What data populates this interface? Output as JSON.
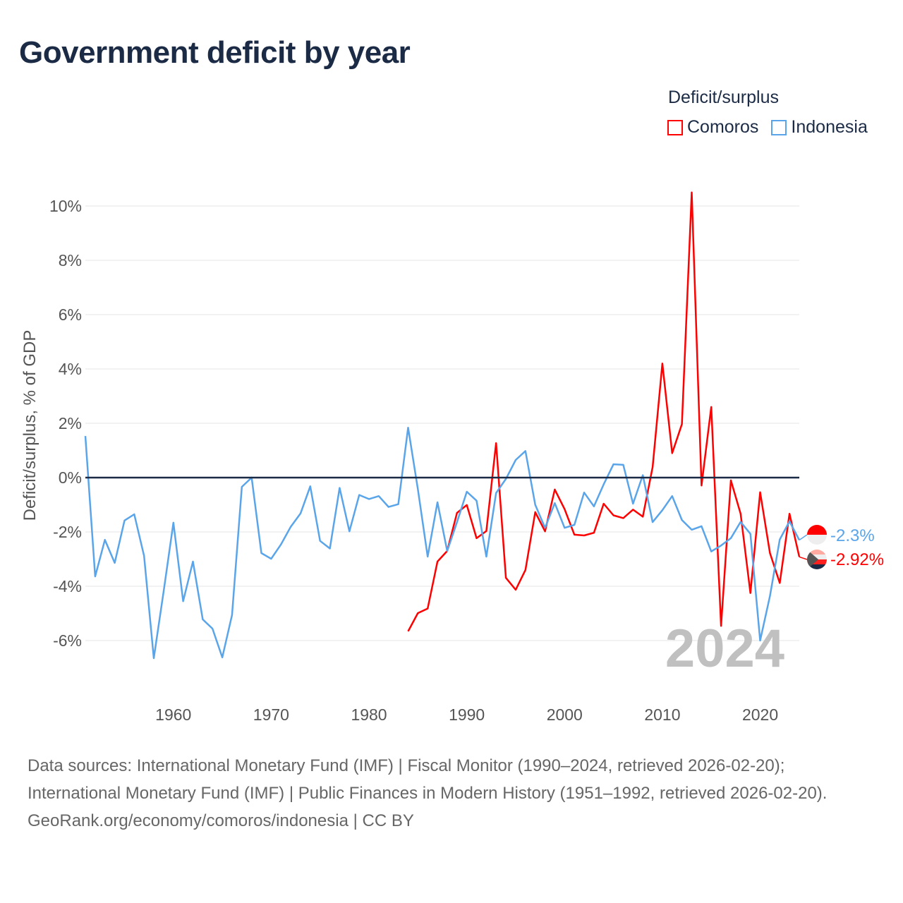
{
  "title": "Government deficit by year",
  "legend": {
    "title": "Deficit/surplus",
    "items": [
      {
        "name": "Comoros",
        "color": "#ff0000"
      },
      {
        "name": "Indonesia",
        "color": "#5aa5ea"
      }
    ]
  },
  "watermark_year": "2024",
  "end_labels": {
    "indonesia": "-2.3%",
    "comoros": "-2.92%"
  },
  "footer": {
    "sources": "Data sources: International Monetary Fund (IMF) | Fiscal Monitor (1990–2024, retrieved 2026-02-20); International Monetary Fund (IMF) | Public Finances in Modern History (1951–1992, retrieved 2026-02-20).",
    "credit": "GeoRank.org/economy/comoros/indonesia | CC BY"
  },
  "chart_data": {
    "type": "line",
    "title": "Government deficit by year",
    "xlabel": "",
    "ylabel": "Deficit/surplus, % of GDP",
    "xlim": [
      1951,
      2024
    ],
    "ylim": [
      -8,
      11
    ],
    "x_ticks": [
      1960,
      1970,
      1980,
      1990,
      2000,
      2010,
      2020
    ],
    "y_ticks": [
      -6,
      -4,
      -2,
      0,
      2,
      4,
      6,
      8,
      10
    ],
    "y_tick_labels": [
      "-6%",
      "-4%",
      "-2%",
      "0%",
      "2%",
      "4%",
      "6%",
      "8%",
      "10%"
    ],
    "grid": true,
    "legend_position": "top-right",
    "series": [
      {
        "name": "Indonesia",
        "color": "#5aa5ea",
        "start_year": 1951,
        "values": [
          1.53,
          -3.64,
          -2.29,
          -3.14,
          -1.58,
          -1.35,
          -2.88,
          -6.65,
          -4.2,
          -1.66,
          -4.55,
          -3.09,
          -5.22,
          -5.56,
          -6.62,
          -5.06,
          -0.34,
          0,
          -2.78,
          -2.99,
          -2.46,
          -1.81,
          -1.32,
          -0.32,
          -2.33,
          -2.61,
          -0.38,
          -1.98,
          -0.64,
          -0.79,
          -0.68,
          -1.08,
          -0.98,
          1.84,
          -0.42,
          -2.91,
          -0.91,
          -2.7,
          -1.64,
          -0.52,
          -0.85,
          -2.91,
          -0.57,
          -0.05,
          0.65,
          0.98,
          -1.0,
          -1.85,
          -0.94,
          -1.85,
          -1.74,
          -0.55,
          -1.06,
          -0.25,
          0.49,
          0.47,
          -0.96,
          0.09,
          -1.64,
          -1.2,
          -0.68,
          -1.56,
          -1.92,
          -1.79,
          -2.72,
          -2.5,
          -2.23,
          -1.63,
          -2.07,
          -6.0,
          -4.36,
          -2.28,
          -1.61,
          -2.3
        ]
      },
      {
        "name": "Comoros",
        "color": "#ff0000",
        "start_year": 1984,
        "values": [
          -5.66,
          -4.99,
          -4.82,
          -3.09,
          -2.7,
          -1.3,
          -1.01,
          -2.23,
          -1.97,
          1.27,
          -3.69,
          -4.13,
          -3.4,
          -1.27,
          -1.98,
          -0.44,
          -1.16,
          -2.1,
          -2.13,
          -2.03,
          -0.96,
          -1.39,
          -1.49,
          -1.18,
          -1.44,
          0.39,
          4.2,
          0.9,
          1.97,
          10.5,
          -0.29,
          2.6,
          -5.46,
          -0.1,
          -1.33,
          -4.25,
          -0.54,
          -2.78,
          -3.88,
          -1.33,
          -2.92
        ]
      }
    ]
  }
}
